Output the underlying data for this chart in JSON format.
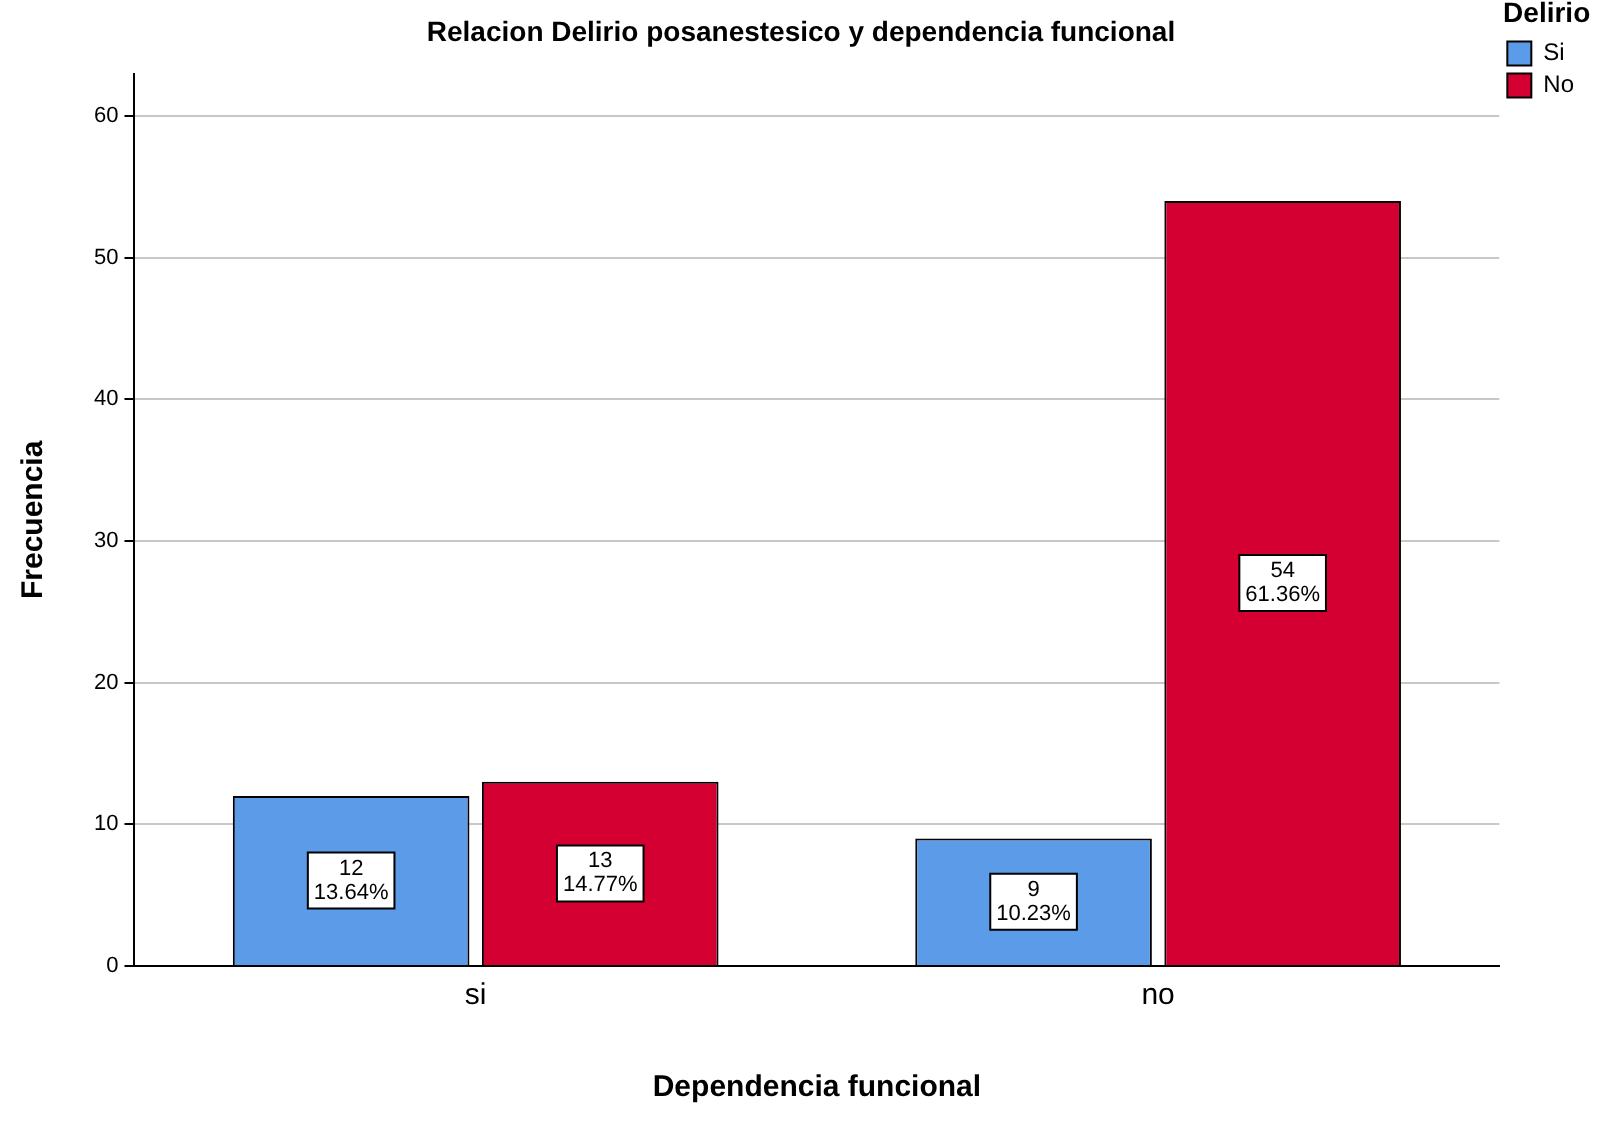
{
  "chart_data": {
    "type": "bar",
    "title": "Relacion Delirio posanestesico y dependencia funcional",
    "xlabel": "Dependencia funcional",
    "ylabel": "Frecuencia",
    "legend_title": "Delirio",
    "categories": [
      "si",
      "no"
    ],
    "series": [
      {
        "name": "Si",
        "color": "#5b9be8",
        "values": [
          12,
          9
        ],
        "value_labels": [
          "12\n13.64%",
          "9\n10.23%"
        ]
      },
      {
        "name": "No",
        "color": "#d40032",
        "values": [
          13,
          54
        ],
        "value_labels": [
          "13\n14.77%",
          "54\n61.36%"
        ]
      }
    ],
    "ylim": [
      0,
      63
    ],
    "yticks": [
      0,
      10,
      20,
      30,
      40,
      50,
      60
    ],
    "grid": "y",
    "legend": "top right"
  }
}
